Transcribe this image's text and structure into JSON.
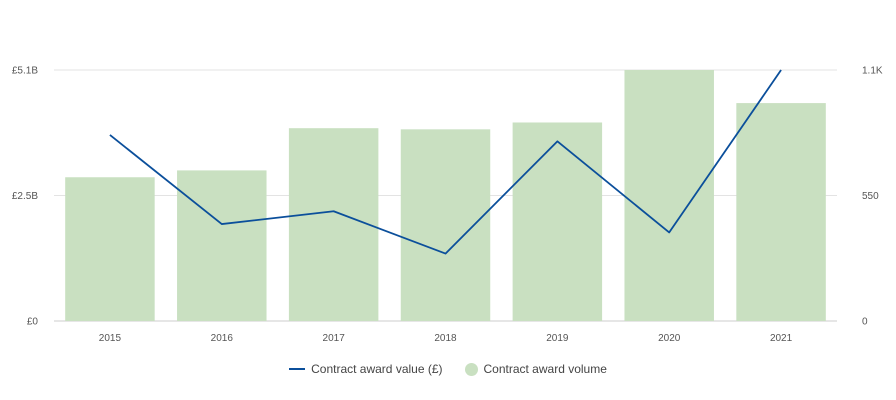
{
  "chart_data": {
    "type": "bar",
    "categories": [
      "2015",
      "2016",
      "2017",
      "2018",
      "2019",
      "2020",
      "2021"
    ],
    "series": [
      {
        "name": "Contract award volume",
        "type": "bar",
        "axis": "right",
        "color": "#c9e0c1",
        "values": [
          630,
          660,
          845,
          840,
          870,
          1100,
          955
        ]
      },
      {
        "name": "Contract award value (£)",
        "type": "line",
        "axis": "left",
        "color": "#0b4f9b",
        "values": [
          3.78,
          1.97,
          2.23,
          1.37,
          3.65,
          1.8,
          5.1
        ]
      }
    ],
    "y_left": {
      "ticks": [
        "£0",
        "£2.5B",
        "£5.1B"
      ],
      "tick_values": [
        0,
        2.55,
        5.1
      ],
      "ylim": [
        0,
        5.1
      ]
    },
    "y_right": {
      "ticks": [
        "0",
        "550",
        "1.1K"
      ],
      "tick_values": [
        0,
        550,
        1100
      ],
      "ylim": [
        0,
        1100
      ]
    },
    "grid": true,
    "legend_position": "bottom-center"
  }
}
